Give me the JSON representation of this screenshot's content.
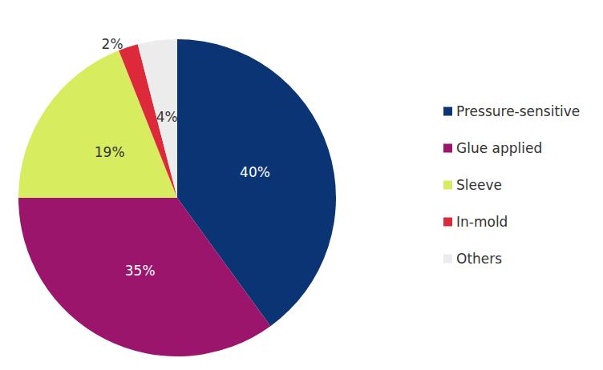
{
  "chart_data": {
    "type": "pie",
    "categories": [
      "Pressure-sensitive",
      "Glue applied",
      "Sleeve",
      "In-mold",
      "Others"
    ],
    "values": [
      40,
      35,
      19,
      2,
      4
    ],
    "value_labels": [
      "40%",
      "35%",
      "19%",
      "2%",
      "4%"
    ],
    "colors": [
      "#0b3475",
      "#9a156b",
      "#d8ec5f",
      "#dc2a3b",
      "#ececec"
    ],
    "data_labels": true,
    "legend": "right"
  }
}
